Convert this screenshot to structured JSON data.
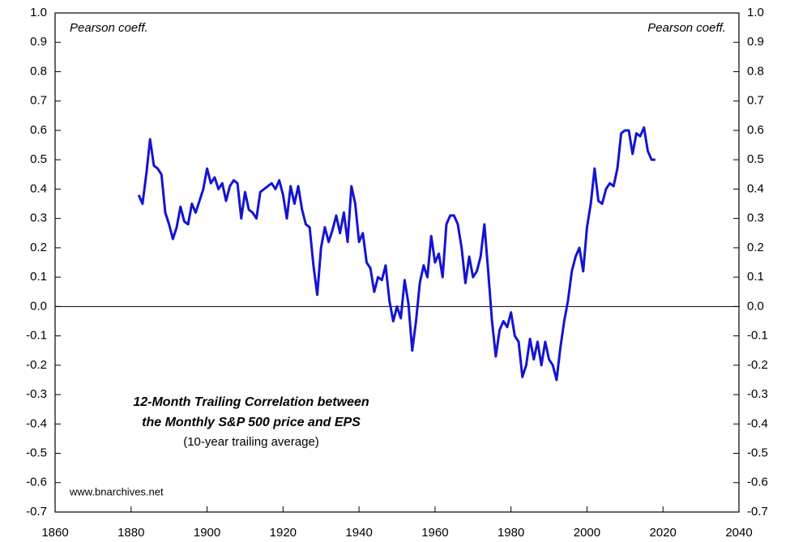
{
  "chart_data": {
    "type": "line",
    "annotations": [
      "Pearson coeff.",
      "Pearson coeff.",
      "12-Month Trailing Correlation between",
      "the Monthly S&P 500 price and EPS",
      "(10-year trailing average)",
      "www.bnarchives.net"
    ],
    "x": [
      1882,
      1883,
      1884,
      1885,
      1886,
      1887,
      1888,
      1889,
      1890,
      1891,
      1892,
      1893,
      1894,
      1895,
      1896,
      1897,
      1898,
      1899,
      1900,
      1901,
      1902,
      1903,
      1904,
      1905,
      1906,
      1907,
      1908,
      1909,
      1910,
      1911,
      1912,
      1913,
      1914,
      1915,
      1916,
      1917,
      1918,
      1919,
      1920,
      1921,
      1922,
      1923,
      1924,
      1925,
      1926,
      1927,
      1928,
      1929,
      1930,
      1931,
      1932,
      1933,
      1934,
      1935,
      1936,
      1937,
      1938,
      1939,
      1940,
      1941,
      1942,
      1943,
      1944,
      1945,
      1946,
      1947,
      1948,
      1949,
      1950,
      1951,
      1952,
      1953,
      1954,
      1955,
      1956,
      1957,
      1958,
      1959,
      1960,
      1961,
      1962,
      1963,
      1964,
      1965,
      1966,
      1967,
      1968,
      1969,
      1970,
      1971,
      1972,
      1973,
      1974,
      1975,
      1976,
      1977,
      1978,
      1979,
      1980,
      1981,
      1982,
      1983,
      1984,
      1985,
      1986,
      1987,
      1988,
      1989,
      1990,
      1991,
      1992,
      1993,
      1994,
      1995,
      1996,
      1997,
      1998,
      1999,
      2000,
      2001,
      2002,
      2003,
      2004,
      2005,
      2006,
      2007,
      2008,
      2009,
      2010,
      2011,
      2012,
      2013,
      2014,
      2015,
      2016,
      2017,
      2018
    ],
    "series": [
      {
        "name": "Correlation",
        "color": "#1414d2",
        "values": [
          0.38,
          0.35,
          0.45,
          0.57,
          0.48,
          0.47,
          0.45,
          0.32,
          0.28,
          0.23,
          0.27,
          0.34,
          0.29,
          0.28,
          0.35,
          0.32,
          0.36,
          0.4,
          0.47,
          0.42,
          0.44,
          0.4,
          0.42,
          0.36,
          0.41,
          0.43,
          0.42,
          0.3,
          0.39,
          0.33,
          0.32,
          0.3,
          0.39,
          0.4,
          0.41,
          0.42,
          0.4,
          0.43,
          0.38,
          0.3,
          0.41,
          0.35,
          0.41,
          0.33,
          0.28,
          0.27,
          0.14,
          0.04,
          0.2,
          0.27,
          0.22,
          0.26,
          0.31,
          0.25,
          0.32,
          0.22,
          0.41,
          0.35,
          0.22,
          0.25,
          0.15,
          0.13,
          0.05,
          0.1,
          0.09,
          0.14,
          0.02,
          -0.05,
          0.0,
          -0.04,
          0.09,
          0.01,
          -0.15,
          -0.05,
          0.08,
          0.14,
          0.1,
          0.24,
          0.15,
          0.18,
          0.1,
          0.28,
          0.31,
          0.31,
          0.28,
          0.2,
          0.08,
          0.17,
          0.1,
          0.12,
          0.17,
          0.28,
          0.12,
          -0.05,
          -0.17,
          -0.08,
          -0.05,
          -0.07,
          -0.02,
          -0.1,
          -0.12,
          -0.24,
          -0.2,
          -0.11,
          -0.18,
          -0.12,
          -0.2,
          -0.12,
          -0.18,
          -0.2,
          -0.25,
          -0.14,
          -0.05,
          0.02,
          0.12,
          0.17,
          0.2,
          0.12,
          0.27,
          0.35,
          0.47,
          0.36,
          0.35,
          0.4,
          0.42,
          0.41,
          0.47,
          0.59,
          0.6,
          0.6,
          0.52,
          0.59,
          0.58,
          0.61,
          0.53,
          0.5,
          0.5
        ]
      }
    ],
    "xlim": [
      1860,
      2040
    ],
    "xticks": [
      1860,
      1880,
      1900,
      1920,
      1940,
      1960,
      1980,
      2000,
      2020,
      2040
    ],
    "ylim": [
      -0.7,
      1.0
    ],
    "yticks": [
      -0.7,
      -0.6,
      -0.5,
      -0.4,
      -0.3,
      -0.2,
      -0.1,
      {
        "value": 0,
        "label": "0.0"
      },
      0.1,
      0.2,
      0.3,
      0.4,
      0.5,
      0.6,
      0.7,
      0.8,
      0.9,
      {
        "value": 1,
        "label": "1.0"
      }
    ],
    "y2lim": [
      -0.7,
      1.0
    ],
    "y2ticks": [
      -0.7,
      -0.6,
      -0.5,
      -0.4,
      -0.3,
      -0.2,
      -0.1,
      {
        "value": 0,
        "label": "0.0"
      },
      0.1,
      0.2,
      0.3,
      0.4,
      0.5,
      0.6,
      0.7,
      0.8,
      0.9,
      {
        "value": 1,
        "label": "1.0"
      }
    ],
    "reference_line": 0
  }
}
